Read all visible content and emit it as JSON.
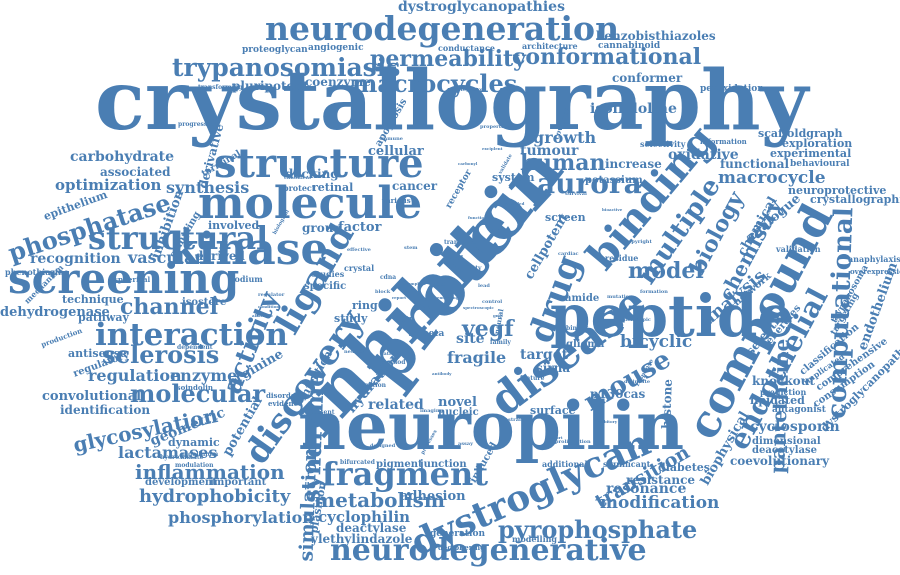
{
  "word_color": "#4a7eb3",
  "background": "#ffffff",
  "words": [
    "crystallography",
    "neuropilin",
    "inhibitor",
    "protein",
    "peptide",
    "neurodegeneration",
    "molecule",
    "screening",
    "kinase",
    "compound",
    "binding",
    "structure",
    "disease",
    "fragment",
    "dystroglycan",
    "interaction",
    "discovery",
    "ligand",
    "neurodegenerative",
    "structural",
    "trypanosomiasis",
    "computational",
    "pyrophosphate",
    "permeability",
    "conformational",
    "macrocycles",
    "phosphatase",
    "endothelial",
    "drug",
    "aurora",
    "molecular",
    "sclerosis",
    "activity",
    "syndrome",
    "multiple",
    "mouse",
    "biology",
    "chemistry",
    "dystroglycanopathies",
    "benzobisthiazoles",
    "human",
    "vegf",
    "model",
    "channel",
    "metabolism",
    "inflammation",
    "hydrophobicity",
    "phosphorylation",
    "modification",
    "glycosylation",
    "simulation",
    "pantetheine",
    "transition",
    "analysis",
    "macrocycle",
    "recognition",
    "vascular",
    "regulation",
    "enzyme",
    "dehydrogenase",
    "lactamases",
    "cyclophilin",
    "ylethylindazole",
    "deactylase",
    "resonance",
    "resistance",
    "diabetes",
    "biophysical",
    "cyclosporin",
    "coevolutionary",
    "dystroglycanopathy",
    "endothelium",
    "neuroprotective",
    "crystallographic",
    "scaffoldgraph",
    "exploration",
    "oxidative",
    "isoindoline",
    "conformer",
    "pluripotent",
    "coenzyme",
    "proteoglycan",
    "angiogenic",
    "cannabinoid",
    "architecture",
    "conductance",
    "peroxidation",
    "carbohydrate",
    "associated",
    "optimization",
    "synthesis",
    "derivative",
    "inhibition",
    "sampling",
    "epithelium",
    "terminal",
    "docking",
    "cellular",
    "retinal",
    "protect",
    "growth",
    "tumour",
    "potassium",
    "increase",
    "functional",
    "experimental",
    "behavioural",
    "selectivity",
    "information",
    "group",
    "factor",
    "cancer",
    "involved",
    "derived",
    "phenothiazine",
    "technique",
    "isostere",
    "pathway",
    "antisense",
    "regulatory",
    "convolutional",
    "identification",
    "geometric",
    "dynamic",
    "development",
    "important",
    "potential",
    "arginine",
    "infection",
    "hydration",
    "related",
    "novel",
    "nucleic",
    "adhesion",
    "plasmon",
    "generation",
    "deciphering",
    "pigment",
    "junction",
    "induced",
    "surface",
    "fragile",
    "target",
    "sirna",
    "glioma",
    "bicyclic",
    "p130cas",
    "histone",
    "knockout",
    "lipidated",
    "antagonist",
    "dimensional",
    "deacetylase",
    "comprehensive",
    "consumption",
    "implicated",
    "classification",
    "anaphylaxis",
    "overexpression",
    "trypanosoma",
    "targeting",
    "prediction",
    "selective",
    "energies",
    "network",
    "analogue",
    "chemical",
    "validation",
    "site",
    "amide",
    "residue",
    "ring",
    "study",
    "specific",
    "crystal",
    "studies",
    "apoptosis",
    "transforming",
    "progression",
    "integrator",
    "system",
    "screen",
    "cellpotent",
    "tgfbeta",
    "modelling",
    "additional",
    "significant",
    "proliferation",
    "mechanism",
    "production",
    "hydroxamate",
    "modulation",
    "dependent",
    "isoindolin",
    "gadolinium",
    "disorder",
    "evidence",
    "represent",
    "bifurcated",
    "imaging",
    "method",
    "reaction",
    "feature",
    "spherical",
    "sodium",
    "various",
    "covalent",
    "properties",
    "canonical",
    "immune",
    "exciplent",
    "survival",
    "carbonyl",
    "receptor",
    "designed",
    "processes",
    "neurite",
    "patient",
    "control",
    "delineate",
    "response",
    "copyright",
    "phenotypic",
    "formation",
    "mutation",
    "binder",
    "family",
    "neural",
    "spectroscopic",
    "gmp",
    "emerging",
    "cdna",
    "block",
    "report",
    "role",
    "fatty",
    "transport",
    "viral",
    "stem",
    "extended",
    "functioning",
    "tgfb",
    "effective",
    "biological",
    "condition",
    "allosteric",
    "cardiac",
    "bioactive",
    "regulator",
    "antibody",
    "template",
    "inhibitory",
    "assay",
    "strain",
    "cohort",
    "validate",
    "lead"
  ]
}
